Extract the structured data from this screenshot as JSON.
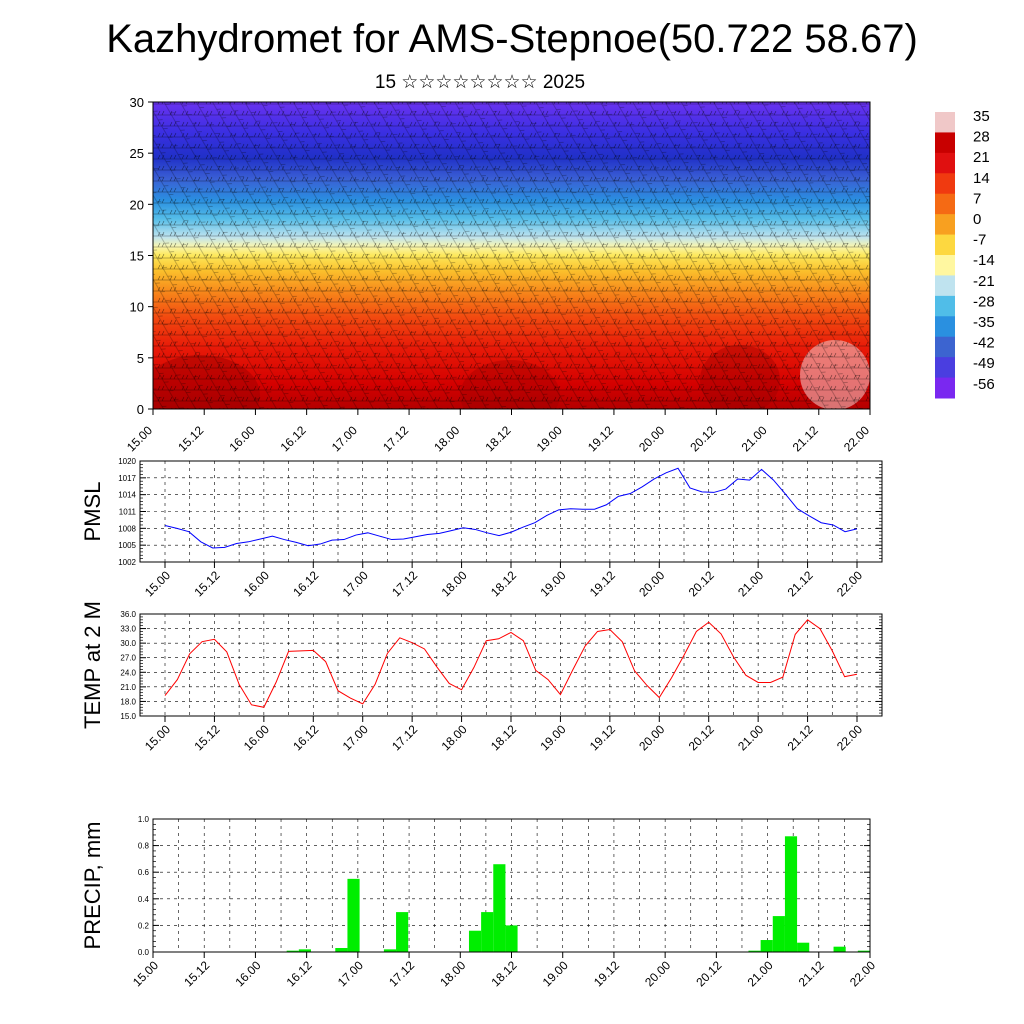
{
  "title": "Kazhydromet for AMS-Stepnoe(50.722 58.67)",
  "subtitle": "15 ☆☆☆☆☆☆☆☆ 2025",
  "time_labels": [
    "15.00",
    "15.12",
    "16.00",
    "16.12",
    "17.00",
    "17.12",
    "18.00",
    "18.12",
    "19.00",
    "19.12",
    "20.00",
    "20.12",
    "21.00",
    "21.12",
    "22.00"
  ],
  "chart_data": [
    {
      "type": "heatmap",
      "name": "cross-section",
      "ylim": [
        0,
        30
      ],
      "y_ticks": [
        0,
        5,
        10,
        15,
        20,
        25,
        30
      ],
      "colorbar_labels": [
        "35",
        "28",
        "21",
        "14",
        "7",
        "0",
        "-7",
        "-14",
        "-21",
        "-28",
        "-35",
        "-42",
        "-49",
        "-56"
      ],
      "colorbar_colors": [
        "#f0c8c8",
        "#c80000",
        "#e01010",
        "#f03a10",
        "#f56a14",
        "#f8a020",
        "#fdd840",
        "#fff7a0",
        "#bfe3ef",
        "#50bde8",
        "#2a90e0",
        "#3c64d0",
        "#4a3ee0",
        "#7a28f0"
      ],
      "grid": false
    },
    {
      "type": "line",
      "ylabel": "PMSL",
      "ylim": [
        1002,
        1020
      ],
      "y_ticks": [
        "1002",
        "1005",
        "1008",
        "1011",
        "1014",
        "1017",
        "1020"
      ],
      "line_color": "#0000ff",
      "grid": true,
      "values": [
        1008.5,
        1008,
        1007.4,
        1005.6,
        1004.5,
        1004.6,
        1005.3,
        1005.6,
        1006.1,
        1006.6,
        1006,
        1005.5,
        1004.9,
        1005.2,
        1005.9,
        1006,
        1006.8,
        1007.2,
        1006.6,
        1006,
        1006.1,
        1006.5,
        1006.9,
        1007.1,
        1007.6,
        1008.1,
        1007.8,
        1007.2,
        1006.7,
        1007.3,
        1008.2,
        1009,
        1010.3,
        1011.3,
        1011.5,
        1011.4,
        1011.4,
        1012.2,
        1013.7,
        1014.2,
        1015.4,
        1016.8,
        1017.9,
        1018.7,
        1015.2,
        1014.5,
        1014.4,
        1015,
        1016.8,
        1016.6,
        1018.5,
        1016.6,
        1014.1,
        1011.5,
        1010.2,
        1009,
        1008.6,
        1007.4,
        1007.9
      ],
      "x_range": [
        0,
        7
      ]
    },
    {
      "type": "line",
      "ylabel": "TEMP at 2 M",
      "ylim": [
        15,
        36
      ],
      "y_ticks": [
        "15.0",
        "18.0",
        "21.0",
        "24.0",
        "27.0",
        "30.0",
        "33.0",
        "36.0"
      ],
      "line_color": "#ff0000",
      "grid": true,
      "values": [
        19.2,
        22.5,
        27.8,
        30.3,
        30.8,
        28.2,
        21.5,
        17.3,
        16.8,
        22,
        28.3,
        28.4,
        28.5,
        26.2,
        20.2,
        18.7,
        17.5,
        21.5,
        27.9,
        31.1,
        30.1,
        28.8,
        25.1,
        21.7,
        20.4,
        25,
        30.5,
        30.9,
        32.2,
        30.5,
        24.4,
        22.5,
        19.4,
        24.5,
        29.4,
        32.4,
        32.8,
        30.3,
        24.3,
        21.3,
        18.8,
        22.9,
        27.5,
        32.4,
        34.3,
        31.9,
        27.2,
        23.4,
        21.9,
        21.9,
        23,
        31.8,
        34.8,
        33,
        28.4,
        23.1,
        23.6
      ],
      "x_range": [
        0,
        7
      ]
    },
    {
      "type": "bar",
      "ylabel": "PRECIP, mm",
      "ylim": [
        0,
        1
      ],
      "y_ticks": [
        "0.0",
        "0.2",
        "0.4",
        "0.6",
        "0.8",
        "1.0"
      ],
      "bar_color": "#00ee00",
      "grid": true,
      "bar_hours": 3,
      "values": [
        0,
        0,
        0,
        0,
        0,
        0,
        0,
        0,
        0,
        0,
        0,
        0.01,
        0.02,
        0,
        0,
        0.03,
        0.55,
        0,
        0,
        0.02,
        0.3,
        0,
        0,
        0,
        0,
        0,
        0.16,
        0.3,
        0.66,
        0.2,
        0,
        0,
        0,
        0,
        0,
        0,
        0,
        0,
        0,
        0,
        0,
        0,
        0,
        0,
        0,
        0,
        0,
        0,
        0,
        0.01,
        0.09,
        0.27,
        0.87,
        0.07,
        0,
        0,
        0.04,
        0,
        0.01
      ],
      "x_range": [
        0,
        7
      ]
    }
  ]
}
